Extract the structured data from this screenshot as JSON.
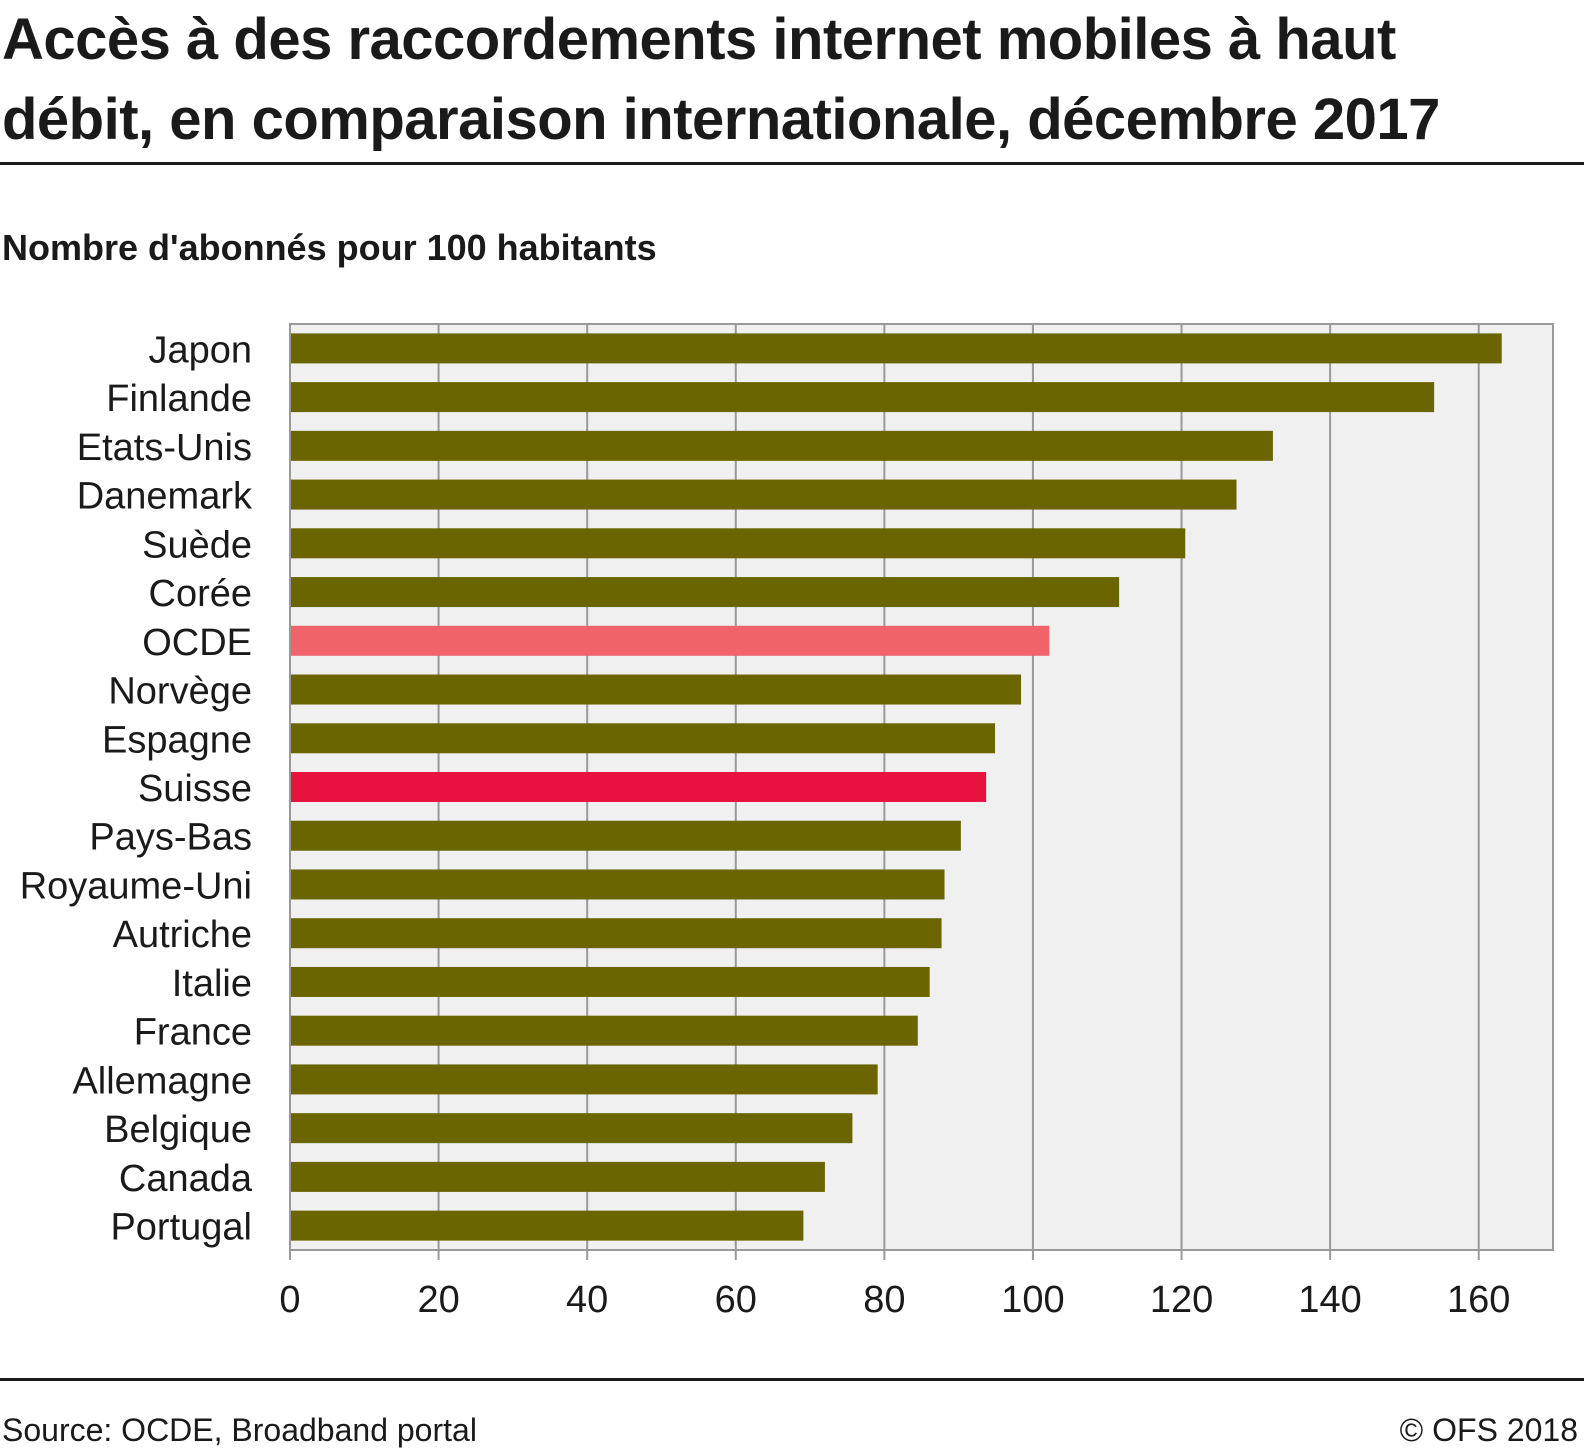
{
  "title": "Accès à des raccordements internet mobiles à haut débit, en comparaison internationale, décembre 2017",
  "subtitle": "Nombre d'abonnés pour 100 habitants",
  "source": "Source: OCDE, Broadband portal",
  "copyright": "© OFS 2018",
  "colors": {
    "default_bar": "#6b6500",
    "oecd_bar": "#f0636b",
    "switzerland_bar": "#e8123f",
    "plot_background": "#f0f0f0",
    "gridline": "#999999"
  },
  "chart_data": {
    "type": "bar",
    "orientation": "horizontal",
    "categories": [
      "Japon",
      "Finlande",
      "Etats-Unis",
      "Danemark",
      "Suède",
      "Corée",
      "OCDE",
      "Norvège",
      "Espagne",
      "Suisse",
      "Pays-Bas",
      "Royaume-Uni",
      "Autriche",
      "Italie",
      "France",
      "Allemagne",
      "Belgique",
      "Canada",
      "Portugal"
    ],
    "values": [
      163.1,
      154.0,
      132.3,
      127.4,
      120.5,
      111.6,
      102.2,
      98.4,
      94.9,
      93.7,
      90.3,
      88.1,
      87.7,
      86.1,
      84.5,
      79.1,
      75.7,
      72.0,
      69.1
    ],
    "highlight": {
      "OCDE": "oecd_bar",
      "Suisse": "switzerland_bar"
    },
    "xlim": [
      0,
      170
    ],
    "xticks": [
      0,
      20,
      40,
      60,
      80,
      100,
      120,
      140,
      160
    ],
    "grid": true,
    "legend": "none"
  }
}
